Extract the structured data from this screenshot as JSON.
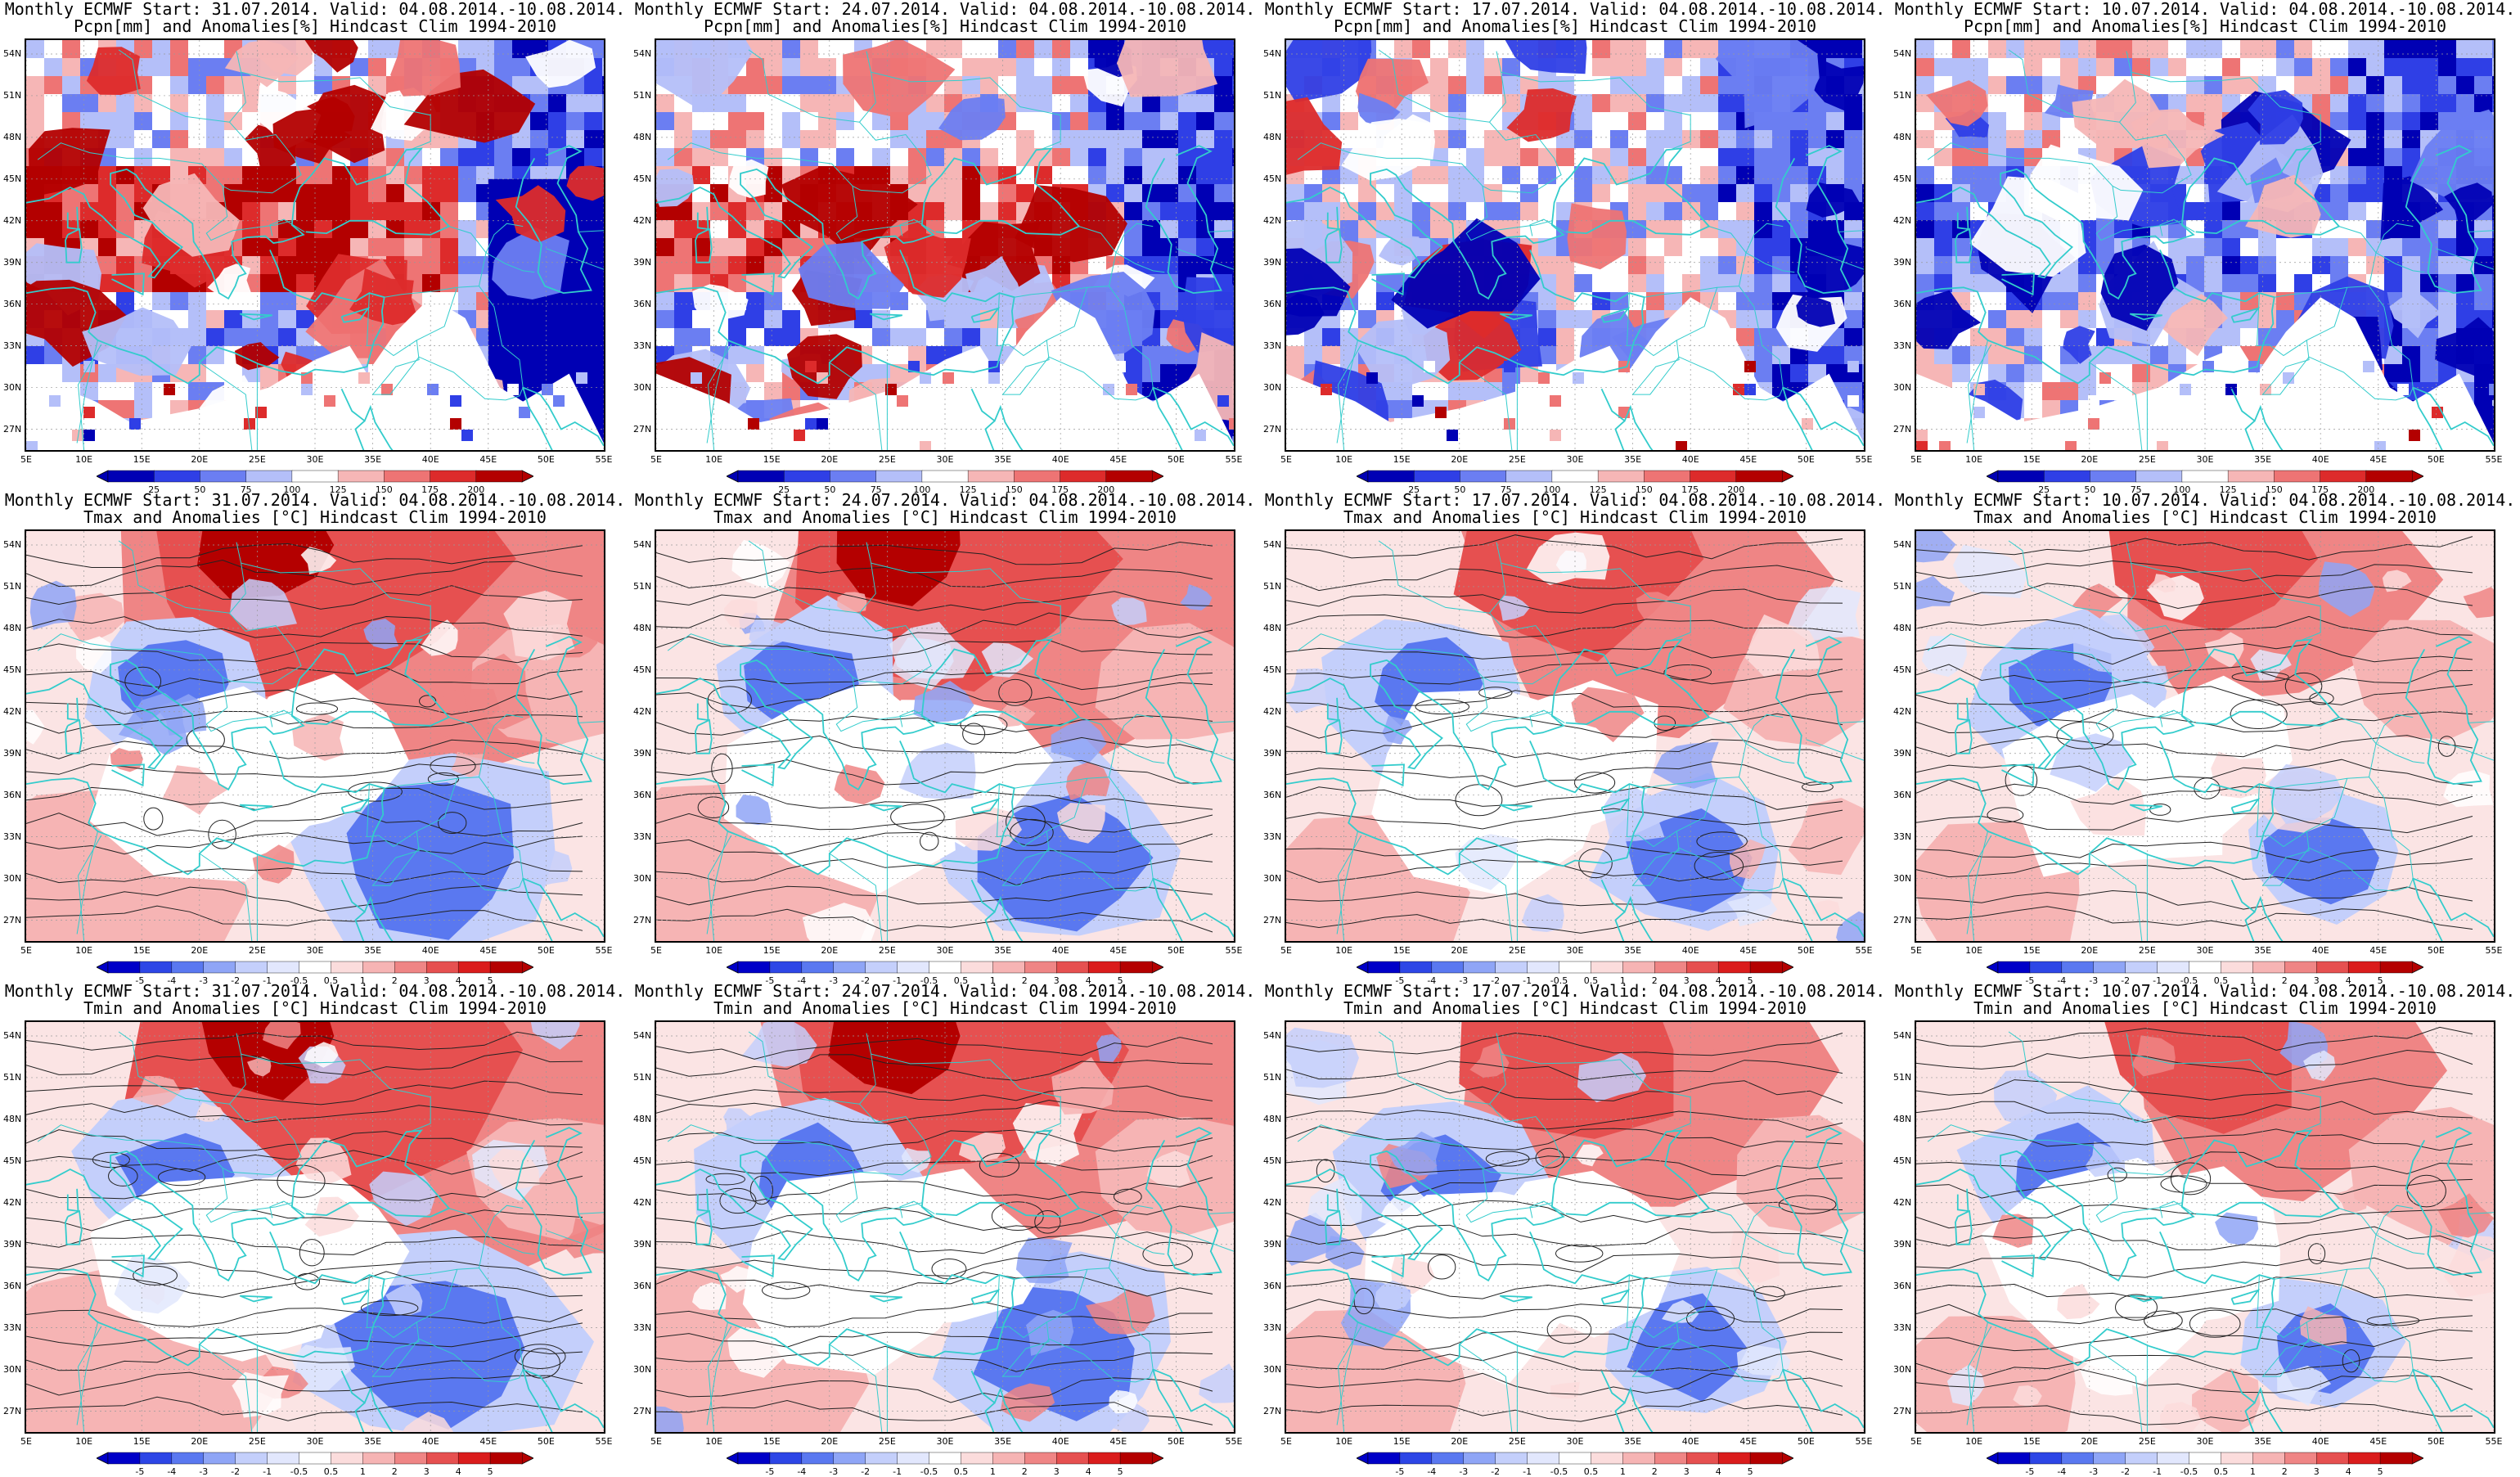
{
  "rows": [
    {
      "variable": "Pcpn[mm] and Anomalies[%] Hindcast Clim 1994-2010",
      "colorbar_ticks": [
        "25",
        "50",
        "75",
        "100",
        "125",
        "150",
        "175",
        "200"
      ],
      "scale": "precip"
    },
    {
      "variable": "Tmax and Anomalies [°C] Hindcast Clim 1994-2010",
      "colorbar_ticks": [
        "-5",
        "-4",
        "-3",
        "-2",
        "-1",
        "-0.5",
        "0.5",
        "1",
        "2",
        "3",
        "4",
        "5"
      ],
      "scale": "temp"
    },
    {
      "variable": "Tmin and Anomalies [°C] Hindcast Clim 1994-2010",
      "colorbar_ticks": [
        "-5",
        "-4",
        "-3",
        "-2",
        "-1",
        "-0.5",
        "0.5",
        "1",
        "2",
        "3",
        "4",
        "5"
      ],
      "scale": "temp"
    }
  ],
  "columns": [
    {
      "header": "Monthly ECMWF Start: 31.07.2014. Valid: 04.08.2014.-10.08.2014.",
      "start": "31.07.2014"
    },
    {
      "header": "Monthly ECMWF Start: 24.07.2014. Valid: 04.08.2014.-10.08.2014.",
      "start": "24.07.2014"
    },
    {
      "header": "Monthly ECMWF Start: 17.07.2014. Valid: 04.08.2014.-10.08.2014.",
      "start": "17.07.2014"
    },
    {
      "header": "Monthly ECMWF Start: 10.07.2014. Valid: 04.08.2014.-10.08.2014.",
      "start": "10.07.2014"
    }
  ],
  "lat_labels": [
    "54N",
    "51N",
    "48N",
    "45N",
    "42N",
    "39N",
    "36N",
    "33N",
    "30N",
    "27N"
  ],
  "lat_values": [
    54,
    51,
    48,
    45,
    42,
    39,
    36,
    33,
    30,
    27
  ],
  "lon_labels": [
    "5E",
    "10E",
    "15E",
    "20E",
    "25E",
    "30E",
    "35E",
    "40E",
    "45E",
    "50E",
    "55E"
  ],
  "lon_values": [
    5,
    10,
    15,
    20,
    25,
    30,
    35,
    40,
    45,
    50,
    55
  ],
  "map_extent": {
    "lon": [
      5,
      55
    ],
    "lat": [
      25.5,
      55
    ]
  },
  "colors": {
    "precip_scale": [
      "#0000b4",
      "#2f3fe6",
      "#6b7ef2",
      "#b4bff9",
      "#ffffff",
      "#f6b6b6",
      "#ee7474",
      "#dd2b2b",
      "#b30000"
    ],
    "temp_scale": [
      "#0000c8",
      "#2d46e6",
      "#5a78f0",
      "#8fa5f6",
      "#c4cffb",
      "#e2e7fd",
      "#ffffff",
      "#fbdcdc",
      "#f6b4b4",
      "#ef8585",
      "#e65050",
      "#da1c1c",
      "#b40000"
    ],
    "coast": "#33cccc",
    "contour": "#222222",
    "frame": "#000000"
  }
}
